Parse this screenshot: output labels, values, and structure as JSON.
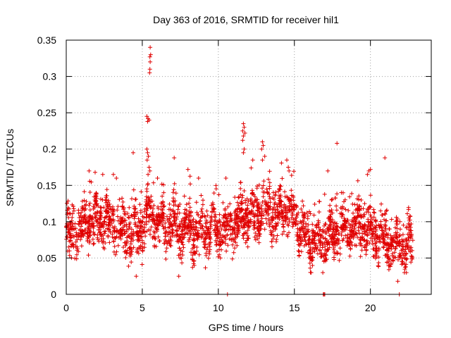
{
  "chart_data": {
    "type": "scatter",
    "title": "Day 363 of 2016, SRMTID for receiver hil1",
    "xlabel": "GPS time / hours",
    "ylabel": "SRMTID / TECUs",
    "xlim": [
      0,
      24
    ],
    "ylim": [
      0,
      0.35
    ],
    "xticks": [
      0,
      5,
      10,
      15,
      20
    ],
    "xtick_labels": [
      "0",
      "5",
      "10",
      "15",
      "20"
    ],
    "yticks": [
      0,
      0.05,
      0.1,
      0.15,
      0.2,
      0.25,
      0.3,
      0.35
    ],
    "ytick_labels": [
      "0",
      "0.05",
      "0.1",
      "0.15",
      "0.2",
      "0.25",
      "0.3",
      "0.35"
    ],
    "grid": true,
    "marker": "+",
    "series": [
      {
        "name": "SRMTID",
        "color": "#e00000",
        "generation": {
          "x_range": [
            0,
            22.8
          ],
          "seed": 363,
          "count": 2600,
          "baseline_profile": [
            [
              0.0,
              0.08
            ],
            [
              1.0,
              0.09
            ],
            [
              1.7,
              0.105
            ],
            [
              2.5,
              0.1
            ],
            [
              3.3,
              0.095
            ],
            [
              4.0,
              0.08
            ],
            [
              4.8,
              0.085
            ],
            [
              5.5,
              0.11
            ],
            [
              6.5,
              0.095
            ],
            [
              7.5,
              0.09
            ],
            [
              8.5,
              0.085
            ],
            [
              9.5,
              0.09
            ],
            [
              10.5,
              0.09
            ],
            [
              11.3,
              0.1
            ],
            [
              12.0,
              0.105
            ],
            [
              13.0,
              0.115
            ],
            [
              14.0,
              0.11
            ],
            [
              14.7,
              0.12
            ],
            [
              15.5,
              0.085
            ],
            [
              16.5,
              0.07
            ],
            [
              17.5,
              0.08
            ],
            [
              18.5,
              0.09
            ],
            [
              19.5,
              0.095
            ],
            [
              20.5,
              0.08
            ],
            [
              21.5,
              0.065
            ],
            [
              22.8,
              0.07
            ]
          ],
          "spread": 0.028
        },
        "highlight_points": [
          [
            5.52,
            0.34
          ],
          [
            5.55,
            0.33
          ],
          [
            5.5,
            0.327
          ],
          [
            5.52,
            0.32
          ],
          [
            5.5,
            0.31
          ],
          [
            5.48,
            0.305
          ],
          [
            5.3,
            0.245
          ],
          [
            5.38,
            0.242
          ],
          [
            5.45,
            0.24
          ],
          [
            5.35,
            0.238
          ],
          [
            5.3,
            0.2
          ],
          [
            5.35,
            0.195
          ],
          [
            5.4,
            0.19
          ],
          [
            5.32,
            0.185
          ],
          [
            5.45,
            0.175
          ],
          [
            5.5,
            0.17
          ],
          [
            5.38,
            0.165
          ],
          [
            11.65,
            0.235
          ],
          [
            11.7,
            0.23
          ],
          [
            11.6,
            0.225
          ],
          [
            11.75,
            0.222
          ],
          [
            11.65,
            0.218
          ],
          [
            11.6,
            0.212
          ],
          [
            11.7,
            0.2
          ],
          [
            11.65,
            0.195
          ],
          [
            12.9,
            0.21
          ],
          [
            12.95,
            0.205
          ],
          [
            12.85,
            0.2
          ],
          [
            13.05,
            0.19
          ],
          [
            12.9,
            0.185
          ],
          [
            17.8,
            0.208
          ],
          [
            4.4,
            0.195
          ],
          [
            7.1,
            0.188
          ],
          [
            14.5,
            0.185
          ],
          [
            20.95,
            0.188
          ],
          [
            14.6,
            0.175
          ],
          [
            14.65,
            0.17
          ],
          [
            19.9,
            0.17
          ],
          [
            19.8,
            0.165
          ],
          [
            20.0,
            0.172
          ],
          [
            1.5,
            0.17
          ],
          [
            1.9,
            0.168
          ],
          [
            2.4,
            0.165
          ],
          [
            3.1,
            0.165
          ],
          [
            3.3,
            0.16
          ],
          [
            8.0,
            0.172
          ],
          [
            8.7,
            0.16
          ],
          [
            6.0,
            0.16
          ],
          [
            10.5,
            0.16
          ],
          [
            17.2,
            0.17
          ],
          [
            4.6,
            0.025
          ],
          [
            7.4,
            0.025
          ],
          [
            21.8,
            0.018
          ],
          [
            21.9,
            0.0
          ],
          [
            10.6,
            0.0
          ],
          [
            16.9,
            0.0
          ],
          [
            16.95,
            0.0
          ],
          [
            17.0,
            0.0
          ]
        ]
      }
    ]
  }
}
